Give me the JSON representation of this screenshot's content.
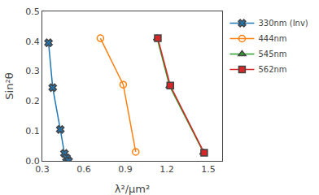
{
  "chart_data": {
    "type": "line",
    "x_label": "λ²/μm²",
    "y_label": "Sin²θ",
    "xlim": [
      0.3,
      1.6
    ],
    "ylim": [
      0.0,
      0.5
    ],
    "xticks": [
      0.3,
      0.6,
      0.9,
      1.2,
      1.5
    ],
    "yticks": [
      {
        "value": 0.0,
        "label": "0.0"
      },
      0.1,
      0.2,
      0.3,
      0.4,
      0.5
    ],
    "grid": false,
    "legend": "upper right",
    "series": [
      {
        "name": "330nm (Inv)",
        "marker": "x",
        "line_style": "solid",
        "x": [
          0.345,
          0.375,
          0.43,
          0.46,
          0.475,
          0.49
        ],
        "values": [
          0.395,
          0.245,
          0.105,
          0.025,
          0.01,
          0.0
        ]
      },
      {
        "name": "444nm",
        "marker": "circle-open",
        "line_style": "solid",
        "x": [
          0.72,
          0.885,
          0.975
        ],
        "values": [
          0.41,
          0.255,
          0.03
        ]
      },
      {
        "name": "545nm",
        "marker": "triangle-up",
        "line_style": "solid",
        "x": [
          1.13,
          1.22,
          1.465
        ],
        "values": [
          0.41,
          0.25,
          0.028
        ]
      },
      {
        "name": "562nm",
        "marker": "square",
        "line_style": "solid",
        "x": [
          1.135,
          1.225,
          1.47
        ],
        "values": [
          0.41,
          0.252,
          0.027
        ]
      }
    ]
  }
}
